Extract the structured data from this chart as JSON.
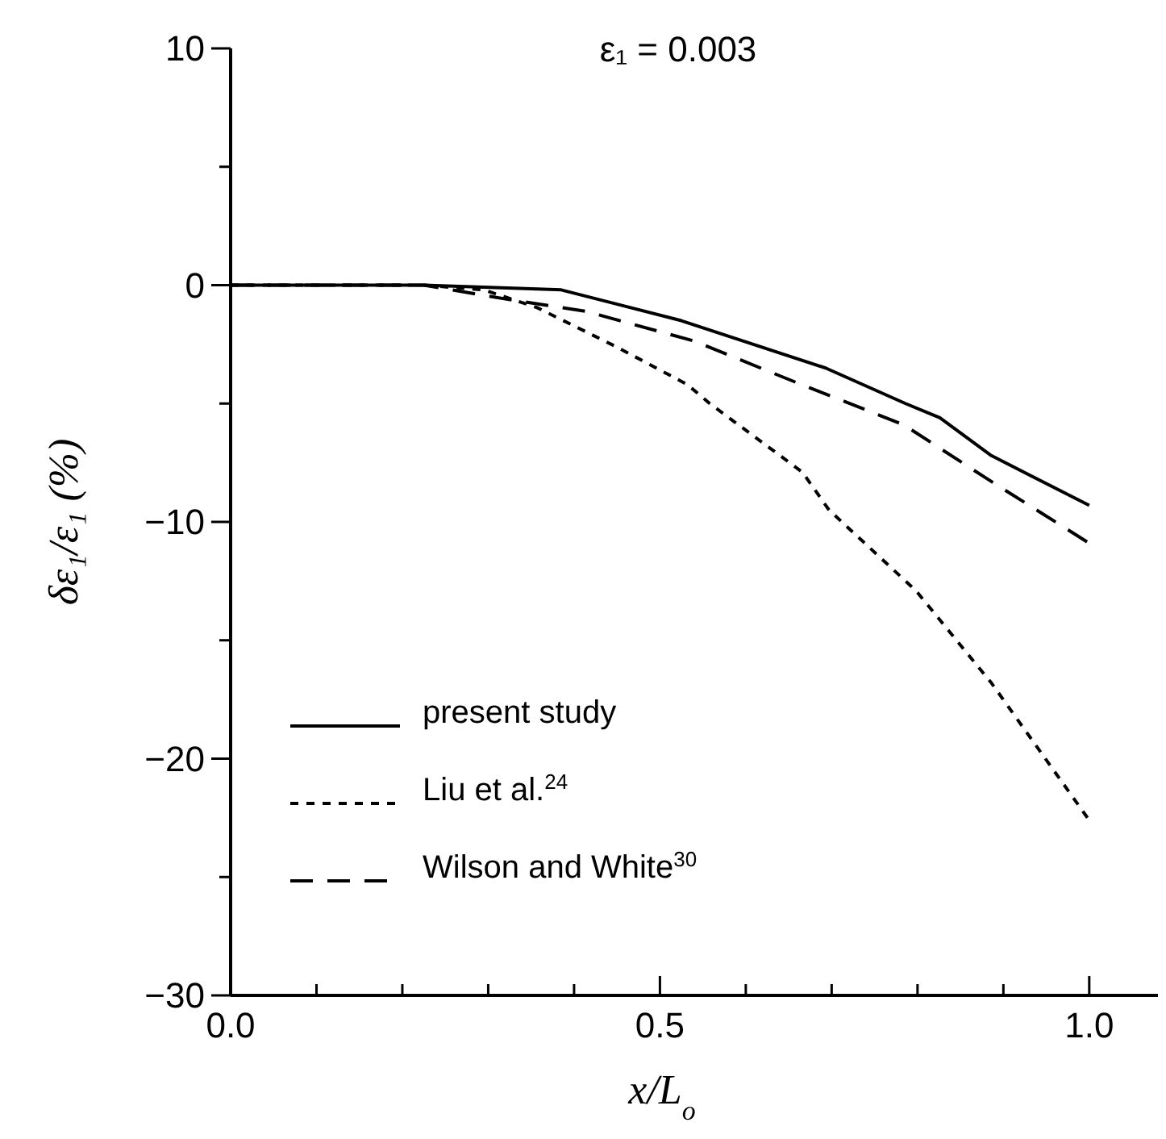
{
  "chart_data": {
    "type": "line",
    "title": "ε₁ = 0.003",
    "xlabel": "x/L$_{o}$",
    "ylabel": "δε₁/ε₁ (%)",
    "xlim": [
      0,
      1.08
    ],
    "ylim": [
      -30,
      10
    ],
    "xticks": [
      {
        "value": 0,
        "label": "0.0"
      },
      {
        "value": 0.1,
        "label": null
      },
      {
        "value": 0.2,
        "label": null
      },
      {
        "value": 0.3,
        "label": null
      },
      {
        "value": 0.4,
        "label": null
      },
      {
        "value": 0.5,
        "label": "0.5"
      },
      {
        "value": 0.6,
        "label": null
      },
      {
        "value": 0.7,
        "label": null
      },
      {
        "value": 0.8,
        "label": null
      },
      {
        "value": 0.9,
        "label": null
      },
      {
        "value": 1.0,
        "label": "1.0"
      }
    ],
    "yticks": [
      -30,
      {
        "value": -25,
        "label": null
      },
      -20,
      {
        "value": -15,
        "label": null
      },
      -10,
      {
        "value": -5,
        "label": null
      },
      0,
      {
        "value": 5,
        "label": null
      },
      10
    ],
    "legend": "bottom left",
    "grid": false,
    "series": [
      {
        "name": "present study",
        "color": "#000000",
        "line_style": "solid",
        "x": [
          0,
          0.225,
          0.385,
          0.525,
          0.693,
          0.786,
          0.826,
          0.886,
          1.0
        ],
        "values": [
          0,
          0,
          -0.2,
          -1.5,
          -3.5,
          -5.0,
          -5.6,
          -7.2,
          -9.3
        ]
      },
      {
        "name": "Liu et al.$^{24}$",
        "color": "#000000",
        "line_style": "dotted",
        "x": [
          0,
          0.225,
          0.295,
          0.357,
          0.449,
          0.532,
          0.558,
          0.666,
          0.697,
          0.798,
          0.886,
          1.0
        ],
        "values": [
          0,
          0,
          -0.2,
          -0.95,
          -2.6,
          -4.2,
          -5.0,
          -7.9,
          -9.5,
          -12.9,
          -16.8,
          -22.6
        ]
      },
      {
        "name": "Wilson and White$^{30}$",
        "color": "#000000",
        "line_style": "dashed",
        "x": [
          0,
          0.225,
          0.323,
          0.413,
          0.539,
          0.658,
          0.784,
          0.882,
          1.0
        ],
        "values": [
          0,
          0,
          -0.6,
          -1.1,
          -2.35,
          -4.1,
          -5.9,
          -8.2,
          -10.9
        ]
      }
    ]
  }
}
